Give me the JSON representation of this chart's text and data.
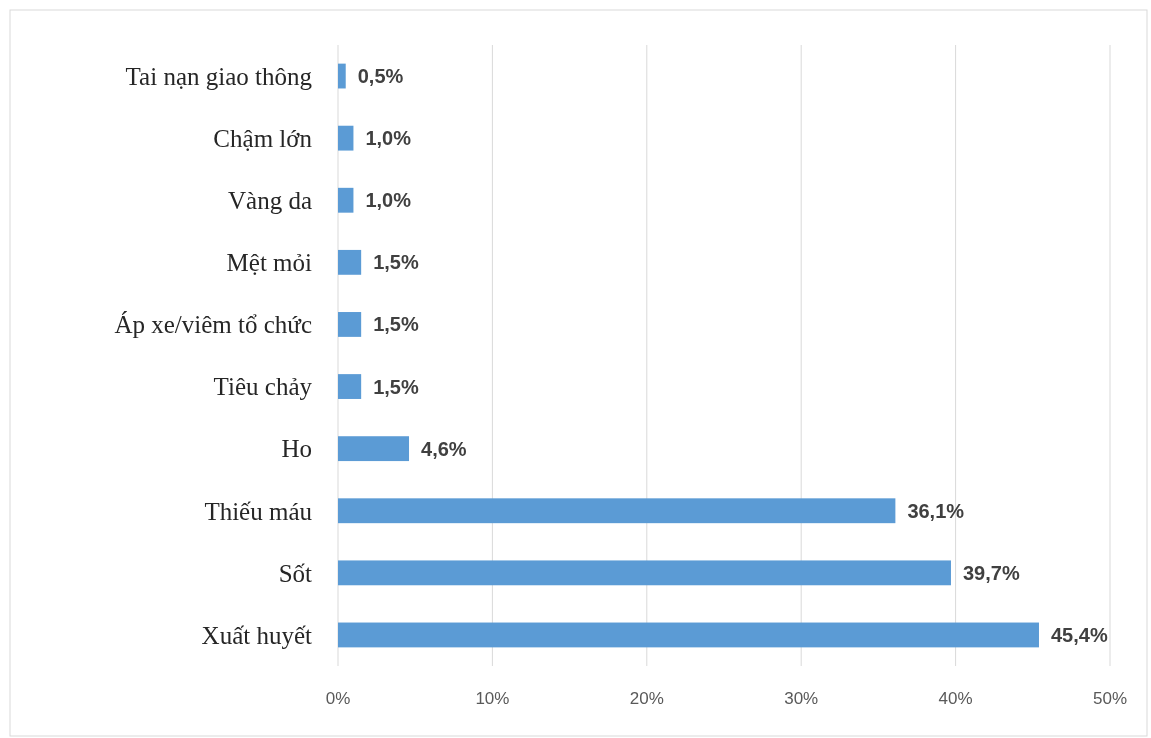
{
  "chart_data": {
    "type": "bar",
    "orientation": "horizontal",
    "categories": [
      "Tai nạn giao thông",
      "Chậm lớn",
      "Vàng da",
      "Mệt mỏi",
      "Áp xe/viêm tổ chức",
      "Tiêu chảy",
      "Ho",
      "Thiếu máu",
      "Sốt",
      "Xuất huyết"
    ],
    "values": [
      0.5,
      1.0,
      1.0,
      1.5,
      1.5,
      1.5,
      4.6,
      36.1,
      39.7,
      45.4
    ],
    "value_labels": [
      "0,5%",
      "1,0%",
      "1,0%",
      "1,5%",
      "1,5%",
      "1,5%",
      "4,6%",
      "36,1%",
      "39,7%",
      "45,4%"
    ],
    "color": "#5b9bd5",
    "xlim": [
      0,
      50
    ],
    "xticks": [
      {
        "value": 0,
        "label": "0%"
      },
      {
        "value": 10,
        "label": "10%"
      },
      {
        "value": 20,
        "label": "20%"
      },
      {
        "value": 30,
        "label": "30%"
      },
      {
        "value": 40,
        "label": "40%"
      },
      {
        "value": 50,
        "label": "50%"
      }
    ],
    "grid": "x"
  }
}
